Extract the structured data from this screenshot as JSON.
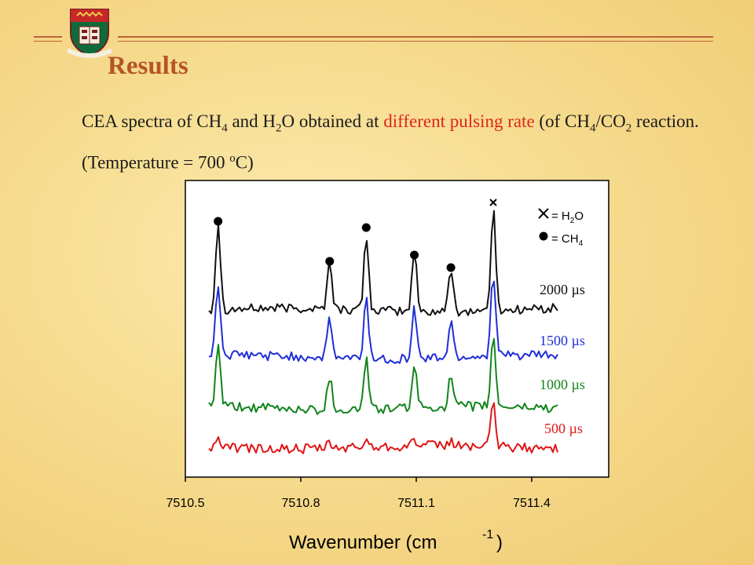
{
  "header": {
    "title": "Results"
  },
  "subtitle": {
    "part1": "CEA spectra of CH",
    "sub1": "4",
    "part2": " and H",
    "sub2": "2",
    "part3": "O obtained at ",
    "highlight": "different pulsing rate",
    "part4": " (of CH",
    "sub3": "4",
    "part5": "/CO",
    "sub4": "2",
    "part6": " reaction. (Temperature = 700 ",
    "sup1": "o",
    "part7": "C)"
  },
  "chart_data": {
    "type": "line",
    "xlabel": "Wavenumber (cm",
    "xlabel_sup": "-1",
    "xlabel_close": ")",
    "xlim": [
      7510.5,
      7511.6
    ],
    "ticks": [
      {
        "value": 7510.5,
        "label": "7510.5"
      },
      {
        "value": 7510.8,
        "label": "7510.8"
      },
      {
        "value": 7511.1,
        "label": "7511.1"
      },
      {
        "value": 7511.4,
        "label": "7511.4"
      }
    ],
    "peaks": [
      {
        "x": 7510.585,
        "species": "CH4",
        "amp": 1.0
      },
      {
        "x": 7510.875,
        "species": "CH4",
        "amp": 0.55
      },
      {
        "x": 7510.97,
        "species": "CH4",
        "amp": 0.85
      },
      {
        "x": 7511.095,
        "species": "CH4",
        "amp": 0.7
      },
      {
        "x": 7511.19,
        "species": "CH4",
        "amp": 0.5
      },
      {
        "x": 7511.3,
        "species": "H2O",
        "amp": 1.15
      }
    ],
    "legend": [
      {
        "marker": "cross",
        "label": "= H",
        "sub": "2",
        "tail": "O"
      },
      {
        "marker": "dot",
        "label": "= CH",
        "sub": "4",
        "tail": ""
      }
    ],
    "series": [
      {
        "name": "2000 µs",
        "color": "#111111",
        "scale": 1.0
      },
      {
        "name": "1500 µs",
        "color": "#1f2fd6",
        "scale": 0.8
      },
      {
        "name": "1000 µs",
        "color": "#12841b",
        "scale": 0.65
      },
      {
        "name": "500 µs",
        "color": "#e01515",
        "scale": 0.25
      }
    ]
  }
}
